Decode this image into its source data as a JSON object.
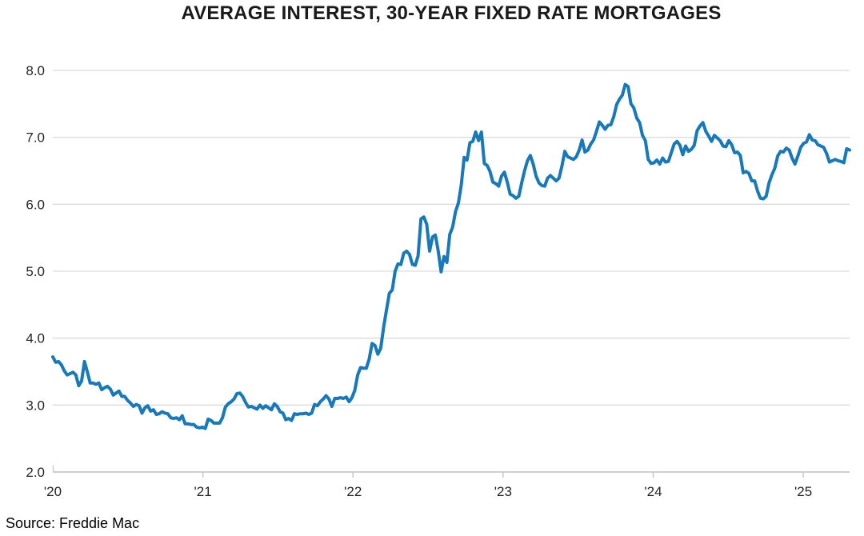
{
  "title": "AVERAGE INTEREST, 30-YEAR FIXED RATE MORTGAGES",
  "source": "Source: Freddie Mac",
  "colors": {
    "line": "#1879ba",
    "grid": "#dcdcdc",
    "axis": "#cfcfcf",
    "tick": "#c6c6c6",
    "text": "#262626",
    "title": "#1a1a1a",
    "background": "#ffffff"
  },
  "chart_data": {
    "type": "line",
    "title": "AVERAGE INTEREST, 30-YEAR FIXED RATE MORTGAGES",
    "frequency": "weekly",
    "start_year": 2020,
    "ylim": [
      2.0,
      8.0
    ],
    "grid": "horizontal",
    "legend": "none",
    "yticks": [
      {
        "value": 8.0,
        "label": "8.0"
      },
      {
        "value": 7.0,
        "label": "7.0"
      },
      {
        "value": 6.0,
        "label": "6.0"
      },
      {
        "value": 5.0,
        "label": "5.0"
      },
      {
        "value": 4.0,
        "label": "4.0"
      },
      {
        "value": 3.0,
        "label": "3.0"
      },
      {
        "value": 2.0,
        "label": "2.0"
      }
    ],
    "xticks": [
      {
        "year": 2020,
        "label": "'20"
      },
      {
        "year": 2021,
        "label": "'21"
      },
      {
        "year": 2022,
        "label": "'22"
      },
      {
        "year": 2023,
        "label": "'23"
      },
      {
        "year": 2024,
        "label": "'24"
      },
      {
        "year": 2025,
        "label": "'25"
      }
    ],
    "values": [
      3.72,
      3.64,
      3.65,
      3.6,
      3.51,
      3.45,
      3.47,
      3.49,
      3.45,
      3.29,
      3.36,
      3.65,
      3.5,
      3.33,
      3.33,
      3.31,
      3.33,
      3.23,
      3.26,
      3.28,
      3.24,
      3.15,
      3.18,
      3.21,
      3.13,
      3.13,
      3.07,
      3.03,
      2.98,
      3.01,
      2.99,
      2.88,
      2.96,
      2.99,
      2.91,
      2.93,
      2.86,
      2.87,
      2.9,
      2.88,
      2.87,
      2.81,
      2.8,
      2.81,
      2.78,
      2.84,
      2.72,
      2.72,
      2.71,
      2.71,
      2.67,
      2.66,
      2.67,
      2.65,
      2.79,
      2.77,
      2.73,
      2.73,
      2.73,
      2.81,
      2.97,
      3.02,
      3.05,
      3.09,
      3.17,
      3.18,
      3.13,
      3.04,
      2.97,
      2.98,
      2.96,
      2.94,
      3.0,
      2.95,
      2.99,
      2.96,
      2.93,
      3.02,
      2.98,
      2.9,
      2.88,
      2.78,
      2.8,
      2.77,
      2.87,
      2.86,
      2.87,
      2.87,
      2.88,
      2.86,
      2.88,
      3.01,
      2.99,
      3.05,
      3.09,
      3.14,
      3.09,
      2.98,
      3.1,
      3.1,
      3.11,
      3.1,
      3.12,
      3.05,
      3.11,
      3.22,
      3.45,
      3.56,
      3.55,
      3.55,
      3.69,
      3.92,
      3.89,
      3.76,
      3.85,
      4.16,
      4.42,
      4.67,
      4.72,
      5.0,
      5.11,
      5.1,
      5.27,
      5.3,
      5.25,
      5.1,
      5.09,
      5.23,
      5.78,
      5.81,
      5.7,
      5.3,
      5.51,
      5.54,
      5.3,
      4.99,
      5.22,
      5.13,
      5.55,
      5.66,
      5.89,
      6.02,
      6.29,
      6.7,
      6.66,
      6.92,
      6.94,
      7.08,
      6.95,
      7.08,
      6.61,
      6.58,
      6.49,
      6.33,
      6.31,
      6.27,
      6.42,
      6.48,
      6.33,
      6.15,
      6.13,
      6.09,
      6.12,
      6.32,
      6.5,
      6.65,
      6.73,
      6.6,
      6.42,
      6.32,
      6.28,
      6.27,
      6.39,
      6.43,
      6.39,
      6.35,
      6.39,
      6.57,
      6.79,
      6.71,
      6.69,
      6.67,
      6.71,
      6.81,
      6.96,
      6.78,
      6.81,
      6.9,
      6.96,
      7.09,
      7.23,
      7.18,
      7.12,
      7.18,
      7.19,
      7.31,
      7.49,
      7.57,
      7.63,
      7.79,
      7.76,
      7.5,
      7.44,
      7.29,
      7.22,
      7.03,
      6.95,
      6.67,
      6.61,
      6.62,
      6.66,
      6.6,
      6.69,
      6.63,
      6.64,
      6.77,
      6.9,
      6.94,
      6.88,
      6.74,
      6.87,
      6.79,
      6.82,
      6.88,
      7.1,
      7.17,
      7.22,
      7.09,
      7.02,
      6.94,
      7.03,
      6.99,
      6.95,
      6.87,
      6.86,
      6.95,
      6.89,
      6.77,
      6.78,
      6.73,
      6.47,
      6.49,
      6.46,
      6.35,
      6.35,
      6.2,
      6.09,
      6.08,
      6.12,
      6.32,
      6.44,
      6.54,
      6.72,
      6.79,
      6.78,
      6.84,
      6.81,
      6.69,
      6.6,
      6.72,
      6.85,
      6.91,
      6.93,
      7.04,
      6.96,
      6.95,
      6.89,
      6.87,
      6.85,
      6.76,
      6.63,
      6.65,
      6.67,
      6.65,
      6.64,
      6.62,
      6.83,
      6.81
    ]
  }
}
